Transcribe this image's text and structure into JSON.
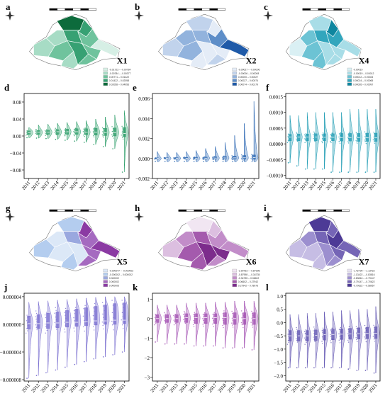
{
  "chart_data": [
    {
      "panel": "a",
      "type": "choropleth",
      "title": "X1",
      "palette": [
        "#d6efe5",
        "#a7dcc5",
        "#6fc39d",
        "#37a173",
        "#0d6b3c"
      ],
      "legend": [
        "-0.01723 – -0.00784",
        "-0.00784 – -0.00377",
        "0.00771 – 0.01422",
        "0.01422 – 0.02058",
        "0.02058 – 0.04956"
      ]
    },
    {
      "panel": "b",
      "type": "choropleth",
      "title": "X2",
      "palette": [
        "#e4ecf7",
        "#c1d3ec",
        "#92b3dd",
        "#5e8ec8",
        "#1f5aa8"
      ],
      "legend": [
        "-0.00027 – -0.00006",
        "-0.00006 – 0.00008",
        "0.00000 – 0.00027",
        "0.00027 – 0.00074",
        "0.00074 – 0.00179"
      ]
    },
    {
      "panel": "c",
      "type": "choropleth",
      "title": "X4",
      "palette": [
        "#daf0f4",
        "#a8dde7",
        "#6cc3d4",
        "#32a6bd",
        "#0f869f"
      ],
      "legend": [
        "-0.00019",
        "-0.00019 – 0.00012",
        "0.00012 – 0.00024",
        "0.00024 – 0.00065",
        "0.00065 – 0.00097"
      ]
    },
    {
      "panel": "d",
      "type": "violin",
      "series_color": "#2e9e6a",
      "x": [
        "2011",
        "2012",
        "2013",
        "2014",
        "2015",
        "2016",
        "2017",
        "2018",
        "2019",
        "2020",
        "2021"
      ],
      "yticks": [
        "−0.08",
        "−0.04",
        "0.00",
        "0.04",
        "0.08"
      ],
      "ylim": [
        -0.1,
        0.1
      ],
      "median": [
        0.008,
        0.009,
        0.009,
        0.01,
        0.01,
        0.01,
        0.009,
        0.009,
        0.008,
        0.008,
        0.006
      ],
      "q1": [
        0.004,
        0.004,
        0.004,
        0.004,
        0.004,
        0.004,
        0.003,
        0.002,
        0.001,
        0.0,
        -0.002
      ],
      "q3": [
        0.012,
        0.013,
        0.014,
        0.015,
        0.016,
        0.017,
        0.017,
        0.018,
        0.018,
        0.019,
        0.02
      ],
      "min": [
        -0.004,
        -0.005,
        -0.006,
        -0.008,
        -0.01,
        -0.012,
        -0.015,
        -0.02,
        -0.025,
        -0.03,
        -0.085
      ],
      "max": [
        0.02,
        0.026,
        0.028,
        0.03,
        0.032,
        0.034,
        0.036,
        0.04,
        0.045,
        0.05,
        0.06
      ]
    },
    {
      "panel": "e",
      "type": "violin",
      "series_color": "#2e69b4",
      "x": [
        "2011",
        "2012",
        "2013",
        "2014",
        "2015",
        "2016",
        "2017",
        "2018",
        "2019",
        "2020",
        "2021"
      ],
      "yticks": [
        "−0.002",
        "0.000",
        "0.002",
        "0.004",
        "0.006"
      ],
      "ylim": [
        -0.002,
        0.0065
      ],
      "median": [
        2e-05,
        2e-05,
        2e-05,
        2e-05,
        3e-05,
        3e-05,
        4e-05,
        5e-05,
        6e-05,
        7e-05,
        8e-05
      ],
      "q1": [
        -3e-05,
        -3e-05,
        -4e-05,
        -4e-05,
        -4e-05,
        -5e-05,
        -5e-05,
        -6e-05,
        -6e-05,
        -7e-05,
        -8e-05
      ],
      "q3": [
        6e-05,
        7e-05,
        8e-05,
        0.0001,
        0.00012,
        0.00014,
        0.00017,
        0.0002,
        0.00024,
        0.0003,
        0.00035
      ],
      "min": [
        -0.0003,
        -0.0003,
        -0.0003,
        -0.0003,
        -0.0003,
        -0.0003,
        -0.0003,
        -0.0003,
        -0.0003,
        -0.0003,
        -0.0003
      ],
      "max": [
        0.0007,
        0.0006,
        0.0006,
        0.0007,
        0.0008,
        0.001,
        0.0012,
        0.0016,
        0.0023,
        0.0035,
        0.0057
      ]
    },
    {
      "panel": "f",
      "type": "violin",
      "series_color": "#1d9bb3",
      "x": [
        "2011",
        "2012",
        "2013",
        "2014",
        "2015",
        "2016",
        "2017",
        "2018",
        "2019",
        "2020",
        "2021"
      ],
      "yticks": [
        "−0.0010",
        "−0.0005",
        "0.0000",
        "0.0005",
        "0.0010",
        "0.0015"
      ],
      "ylim": [
        -0.0011,
        0.0016
      ],
      "median": [
        0.00022,
        0.00022,
        0.00022,
        0.00022,
        0.00021,
        0.00021,
        0.0002,
        0.0002,
        0.0002,
        0.00019,
        0.00019
      ],
      "q1": [
        0.0001,
        0.0001,
        0.0001,
        0.0001,
        0.0001,
        0.0001,
        9e-05,
        9e-05,
        8e-05,
        8e-05,
        8e-05
      ],
      "q3": [
        0.0003,
        0.00031,
        0.00031,
        0.00032,
        0.00032,
        0.00032,
        0.00033,
        0.00033,
        0.00033,
        0.00034,
        0.00034
      ],
      "min": [
        -0.0006,
        -0.0007,
        -0.0008,
        -0.0008,
        -0.0008,
        -0.0009,
        -0.0009,
        -0.0009,
        -0.0009,
        -0.0009,
        -0.0009
      ],
      "max": [
        0.0009,
        0.0009,
        0.001,
        0.001,
        0.001,
        0.001,
        0.001,
        0.0011,
        0.0011,
        0.0011,
        0.0011
      ]
    },
    {
      "panel": "g",
      "type": "choropleth",
      "title": "X5",
      "palette": [
        "#dce8f7",
        "#b4cdef",
        "#9aa8df",
        "#a56ac0",
        "#8b3aa3"
      ],
      "legend": [
        "-0.000047 – -0.000002",
        "-0.000002 – 0.000002",
        "0.000002",
        "0.000002",
        "0.000005"
      ]
    },
    {
      "panel": "h",
      "type": "choropleth",
      "title": "X6",
      "palette": [
        "#f1e6f2",
        "#dcbfe0",
        "#c28dc9",
        "#a45aad",
        "#7c2c8c"
      ],
      "legend": [
        "-2.90763 – -0.87998",
        "-0.87998 – -0.34735",
        "-0.34735 – 0.06602",
        "0.06602 – 0.27942",
        "0.27942 – 0.78076"
      ]
    },
    {
      "panel": "i",
      "type": "choropleth",
      "title": "X7",
      "palette": [
        "#e8e3f3",
        "#c6bde4",
        "#9c8fcf",
        "#7565b6",
        "#4d3a96"
      ],
      "legend": [
        "-1.42799 – -1.13422",
        "-1.13422 – -0.83816",
        "-0.83816 – -0.79147",
        "-0.79147 – -0.70622",
        "-0.70622 – -0.58957"
      ]
    },
    {
      "panel": "j",
      "type": "violin",
      "series_color": "#7a6fd0",
      "x": [
        "2011",
        "2012",
        "2013",
        "2014",
        "2015",
        "2016",
        "2017",
        "2018",
        "2019",
        "2020",
        "2021"
      ],
      "yticks": [
        "−0.000008",
        "−0.000004",
        "0.000000",
        "0.000004"
      ],
      "ylim": [
        -8.2e-06,
        4.5e-06
      ],
      "median": [
        1e-07,
        1e-07,
        2e-07,
        2e-07,
        3e-07,
        3e-07,
        4e-07,
        5e-07,
        5e-07,
        6e-07,
        6e-07
      ],
      "q1": [
        -7e-07,
        -6e-07,
        -6e-07,
        -5e-07,
        -4e-07,
        -3e-07,
        -2e-07,
        -1e-07,
        0.0,
        0.0,
        1e-07
      ],
      "q3": [
        1.2e-06,
        1.4e-06,
        1.6e-06,
        1.8e-06,
        2e-06,
        2.2e-06,
        2.4e-06,
        2.6e-06,
        2.8e-06,
        3e-06,
        3.1e-06
      ],
      "min": [
        -7.8e-06,
        -7.4e-06,
        -7e-06,
        -6.6e-06,
        -6.2e-06,
        -5.8e-06,
        -5.4e-06,
        -5e-06,
        -4.7e-06,
        -4.4e-06,
        -4e-06
      ],
      "max": [
        3.2e-06,
        3.3e-06,
        3.4e-06,
        3.5e-06,
        3.6e-06,
        3.7e-06,
        3.8e-06,
        3.9e-06,
        4e-06,
        4e-06,
        4e-06
      ]
    },
    {
      "panel": "k",
      "type": "violin",
      "series_color": "#a24fb2",
      "x": [
        "2011",
        "2012",
        "2013",
        "2014",
        "2015",
        "2016",
        "2017",
        "2018",
        "2019",
        "2020",
        "2021"
      ],
      "yticks": [
        "−3",
        "−2",
        "−1",
        "0",
        "1"
      ],
      "ylim": [
        -3.2,
        1.3
      ],
      "median": [
        0.0,
        0.0,
        0.0,
        0.05,
        0.05,
        0.05,
        0.05,
        0.05,
        0.0,
        0.0,
        0.0
      ],
      "q1": [
        -0.2,
        -0.2,
        -0.2,
        -0.2,
        -0.25,
        -0.25,
        -0.25,
        -0.3,
        -0.3,
        -0.3,
        -0.3
      ],
      "q3": [
        0.2,
        0.2,
        0.2,
        0.25,
        0.25,
        0.25,
        0.25,
        0.3,
        0.3,
        0.3,
        0.3
      ],
      "min": [
        -1.2,
        -1.3,
        -1.3,
        -1.3,
        -1.4,
        -1.4,
        -1.4,
        -1.5,
        -1.5,
        -1.5,
        -1.6
      ],
      "max": [
        0.7,
        0.7,
        0.7,
        0.8,
        0.8,
        0.8,
        0.85,
        0.85,
        0.9,
        0.9,
        0.9
      ]
    },
    {
      "panel": "l",
      "type": "violin",
      "series_color": "#6357b3",
      "x": [
        "2011",
        "2012",
        "2013",
        "2014",
        "2015",
        "2016",
        "2017",
        "2018",
        "2019",
        "2020",
        "2021"
      ],
      "yticks": [
        "−2.0",
        "−1.5",
        "−1.0",
        "−0.5",
        "0.0",
        "0.5",
        "1.0"
      ],
      "ylim": [
        -2.2,
        1.1
      ],
      "median": [
        -0.5,
        -0.5,
        -0.5,
        -0.48,
        -0.46,
        -0.45,
        -0.44,
        -0.43,
        -0.42,
        -0.41,
        -0.4
      ],
      "q1": [
        -0.7,
        -0.7,
        -0.7,
        -0.68,
        -0.66,
        -0.65,
        -0.64,
        -0.63,
        -0.62,
        -0.61,
        -0.6
      ],
      "q3": [
        -0.3,
        -0.3,
        -0.3,
        -0.28,
        -0.26,
        -0.25,
        -0.24,
        -0.22,
        -0.2,
        -0.18,
        -0.16
      ],
      "min": [
        -1.7,
        -1.7,
        -1.7,
        -1.7,
        -1.7,
        -1.7,
        -1.7,
        -1.75,
        -1.8,
        -1.8,
        -1.9
      ],
      "max": [
        0.3,
        0.3,
        0.35,
        0.35,
        0.4,
        0.4,
        0.45,
        0.45,
        0.5,
        0.5,
        0.6
      ]
    }
  ]
}
